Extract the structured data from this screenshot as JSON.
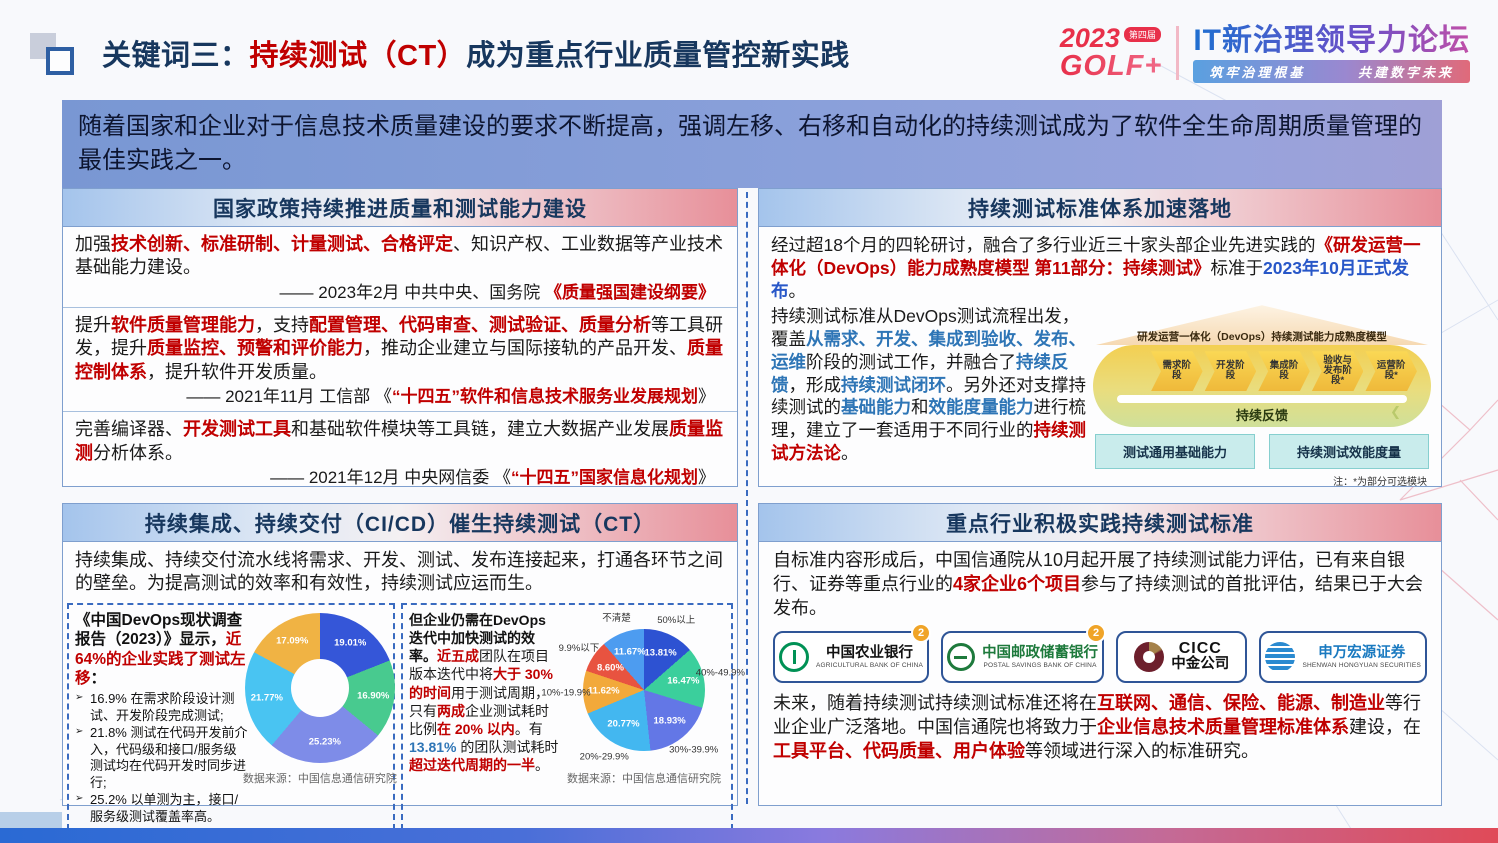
{
  "header": {
    "title_prefix": "关键词三：",
    "title_highlight": "持续测试（CT）",
    "title_suffix": "成为重点行业质量管控新实践",
    "logo": {
      "year": "2023",
      "edition_badge": "第四届",
      "brand": "GOLF+",
      "forum": "IT新治理领导力论坛",
      "slogan_left": "筑牢治理根基",
      "slogan_right": "共建数字未来"
    }
  },
  "intro_banner": "随着国家和企业对于信息技术质量建设的要求不断提高，强调左移、右移和自动化的持续测试成为了软件全生命周期质量管理的最佳实践之一。",
  "colors": {
    "accent_red": "#c00000",
    "accent_blue": "#2e75b6",
    "navy": "#17375e"
  },
  "panels": {
    "policy": {
      "title": "国家政策持续推进质量和测试能力建设",
      "items": [
        {
          "text": [
            {
              "t": "加强",
              "s": "n"
            },
            {
              "t": "技术创新、标准研制、计量测试、合格评定",
              "s": "r"
            },
            {
              "t": "、知识产权、工业数据等产业技术基础能力建设。",
              "s": "n"
            }
          ],
          "source": [
            {
              "t": "—— 2023年2月  中共中央、国务院  ",
              "s": "n"
            },
            {
              "t": "《质量强国建设纲要》",
              "s": "r"
            }
          ]
        },
        {
          "text": [
            {
              "t": "提升",
              "s": "n"
            },
            {
              "t": "软件质量管理能力",
              "s": "r"
            },
            {
              "t": "，支持",
              "s": "n"
            },
            {
              "t": "配置管理、代码审查、测试验证、质量分析",
              "s": "r"
            },
            {
              "t": "等工具研发，提升",
              "s": "n"
            },
            {
              "t": "质量监控、预警和评价能力",
              "s": "r"
            },
            {
              "t": "，推动企业建立与国际接轨的产品开发、",
              "s": "n"
            },
            {
              "t": "质量控制体系",
              "s": "r"
            },
            {
              "t": "，提升软件开发质量。",
              "s": "n"
            }
          ],
          "source": [
            {
              "t": "—— 2021年11月  工信部  《",
              "s": "n"
            },
            {
              "t": "“十四五”软件和信息技术服务业发展规划",
              "s": "r"
            },
            {
              "t": "》",
              "s": "n"
            }
          ]
        },
        {
          "text": [
            {
              "t": "完善编译器、",
              "s": "n"
            },
            {
              "t": "开发测试工具",
              "s": "r"
            },
            {
              "t": "和基础软件模块等工具链，建立大数据产业发展",
              "s": "n"
            },
            {
              "t": "质量监测",
              "s": "r"
            },
            {
              "t": "分析体系。",
              "s": "n"
            }
          ],
          "source": [
            {
              "t": "—— 2021年12月 中央网信委 《",
              "s": "n"
            },
            {
              "t": "“十四五”国家信息化规划",
              "s": "r"
            },
            {
              "t": "》",
              "s": "n"
            }
          ]
        }
      ]
    },
    "standard": {
      "title": "持续测试标准体系加速落地",
      "p1": [
        {
          "t": "经过超18个月的四轮研讨，融合了多行业近三十家头部企业先进实践的",
          "s": "n"
        },
        {
          "t": "《研发运营一体化（DevOps）能力成熟度模型 第11部分：持续测试》",
          "s": "r"
        },
        {
          "t": "标准于",
          "s": "n"
        },
        {
          "t": "2023年10月正式发布",
          "s": "db"
        },
        {
          "t": "。",
          "s": "n"
        }
      ],
      "p2": [
        {
          "t": "持续测试标准从DevOps测试流程出发，覆盖",
          "s": "n"
        },
        {
          "t": "从需求、开发、集成到验收、发布、运维",
          "s": "b"
        },
        {
          "t": "阶段的测试工作，并融合了",
          "s": "n"
        },
        {
          "t": "持续反馈",
          "s": "b"
        },
        {
          "t": "，形成",
          "s": "n"
        },
        {
          "t": "持续测试闭环",
          "s": "b"
        },
        {
          "t": "。另外还对支撑持续测试的",
          "s": "n"
        },
        {
          "t": "基础能力",
          "s": "b"
        },
        {
          "t": "和",
          "s": "n"
        },
        {
          "t": "效能度量能力",
          "s": "b"
        },
        {
          "t": "进行梳理，建立了一套适用于不同行业的",
          "s": "n"
        },
        {
          "t": "持续测试方法论",
          "s": "r"
        },
        {
          "t": "。",
          "s": "n"
        }
      ],
      "diagram": {
        "title": "研发运营一体化（DevOps）持续测试能力成熟度模型",
        "stages": [
          "需求阶段",
          "开发阶段",
          "集成阶段",
          "验收与\n发布阶段*",
          "运营阶段*"
        ],
        "feedback": "持续反馈",
        "boxes": [
          "测试通用基础能力",
          "持续测试效能度量"
        ],
        "note": "注：*为部分可选模块"
      }
    },
    "cicd": {
      "title": "持续集成、持续交付（CI/CD）催生持续测试（CT）",
      "intro": "持续集成、持续交付流水线将需求、开发、测试、发布连接起来，打通各环节之间的壁垒。为提高测试的效率和有效性，持续测试应运而生。",
      "left": {
        "lead": [
          {
            "t": "《中国DevOps现状调查报告（2023）》显示，",
            "s": "d"
          },
          {
            "t": "近64%的企业实践了测试左移",
            "s": "r"
          },
          {
            "t": "：",
            "s": "d"
          }
        ],
        "bullets": [
          "16.9% 在需求阶段设计测试、开发阶段完成测试;",
          "21.8% 测试在代码开发前介入，代码级和接口/服务级测试均在代码开发时同步进行;",
          "25.2% 以单测为主，接口/服务级测试覆盖率高。"
        ]
      },
      "right": {
        "lead": [
          {
            "t": "但企业仍需在DevOps迭代中加快测试的效率。",
            "s": "d"
          },
          {
            "t": "近五成",
            "s": "r"
          },
          {
            "t": "团队在项目版本迭代中将",
            "s": "n"
          },
          {
            "t": "大于 30% 的时间",
            "s": "r"
          },
          {
            "t": "用于测试周期，只有",
            "s": "n"
          },
          {
            "t": "两成",
            "s": "r"
          },
          {
            "t": "企业测试耗时比例",
            "s": "n"
          },
          {
            "t": "在 20% 以内",
            "s": "r"
          },
          {
            "t": "。有 ",
            "s": "n"
          },
          {
            "t": "13.81%",
            "s": "b"
          },
          {
            "t": " 的团队测试耗时",
            "s": "n"
          },
          {
            "t": "超过迭代周期的一半",
            "s": "r"
          },
          {
            "t": "。",
            "s": "n"
          }
        ]
      }
    },
    "industry": {
      "title": "重点行业积极实践持续测试标准",
      "p1": [
        {
          "t": "自标准内容形成后，中国信通院从10月起开展了持续测试能力评估，已有来自银行、证券等重点行业的",
          "s": "n"
        },
        {
          "t": "4家企业6个项目",
          "s": "r"
        },
        {
          "t": "参与了持续测试的首批评估，结果已于大会发布。",
          "s": "n"
        }
      ],
      "logos": [
        {
          "cn": "中国农业银行",
          "en": "AGRICULTURAL BANK OF CHINA",
          "badge": "2",
          "icon": "abc-bank-icon",
          "cn_color": "#111111",
          "icon_class": "icon-ring"
        },
        {
          "cn": "中国邮政储蓄银行",
          "en": "POSTAL SAVINGS BANK OF CHINA",
          "badge": "2",
          "icon": "psbc-bank-icon",
          "cn_color": "#1e7a3c",
          "icon_class": "icon-ring-h"
        },
        {
          "cn": "中金公司",
          "en": "CICC",
          "icon": "cicc-icon",
          "cn_color": "#111111",
          "icon_class": "icon-cicc",
          "stacked": true
        },
        {
          "cn": "申万宏源证券",
          "en": "SHENWAN HONGYUAN SECURITIES",
          "icon": "swhy-securities-icon",
          "cn_color": "#1a7ac0",
          "icon_class": "icon-swhy"
        }
      ],
      "p2": [
        {
          "t": "未来，随着持续测试持续测试标准还将在",
          "s": "n"
        },
        {
          "t": "互联网、通信、保险、能源、制造业",
          "s": "r"
        },
        {
          "t": "等行业企业广泛落地。中国信通院也将致力于",
          "s": "n"
        },
        {
          "t": "企业信息技术质量管理标准体系",
          "s": "r"
        },
        {
          "t": "建设，在",
          "s": "n"
        },
        {
          "t": "工具平台、代码质量、用户体验",
          "s": "r"
        },
        {
          "t": "等领域进行深入的标准研究。",
          "s": "n"
        }
      ]
    }
  },
  "chart_data": [
    {
      "type": "pie",
      "style": "donut",
      "values": [
        19.01,
        16.9,
        25.23,
        21.77,
        17.09
      ],
      "value_labels": [
        "19.01%",
        "16.90%",
        "25.23%",
        "21.77%",
        "17.09%"
      ],
      "colors": [
        "#3556d8",
        "#48ca8f",
        "#7e8ce8",
        "#49c4f2",
        "#f0b344"
      ],
      "legend_position": "none",
      "source": "数据来源：中国信息通信研究院"
    },
    {
      "type": "pie",
      "style": "pie",
      "categories": [
        "50%以上",
        "40%-49.9%",
        "30%-39.9%",
        "20%-29.9%",
        "10%-19.9%",
        "9.9%以下",
        "不清楚"
      ],
      "values": [
        13.81,
        16.47,
        18.93,
        20.77,
        11.62,
        8.6,
        11.67
      ],
      "value_labels": [
        "13.81%",
        "16.47%",
        "18.93%",
        "20.77%",
        "11.62%",
        "8.60%",
        "11.67%"
      ],
      "colors": [
        "#2d52d2",
        "#3bcf9c",
        "#6377e6",
        "#43b7f0",
        "#f2a93a",
        "#e85340",
        "#4d9cf0"
      ],
      "legend_position": "outer-labels",
      "source": "数据来源：中国信息通信研究院"
    }
  ]
}
